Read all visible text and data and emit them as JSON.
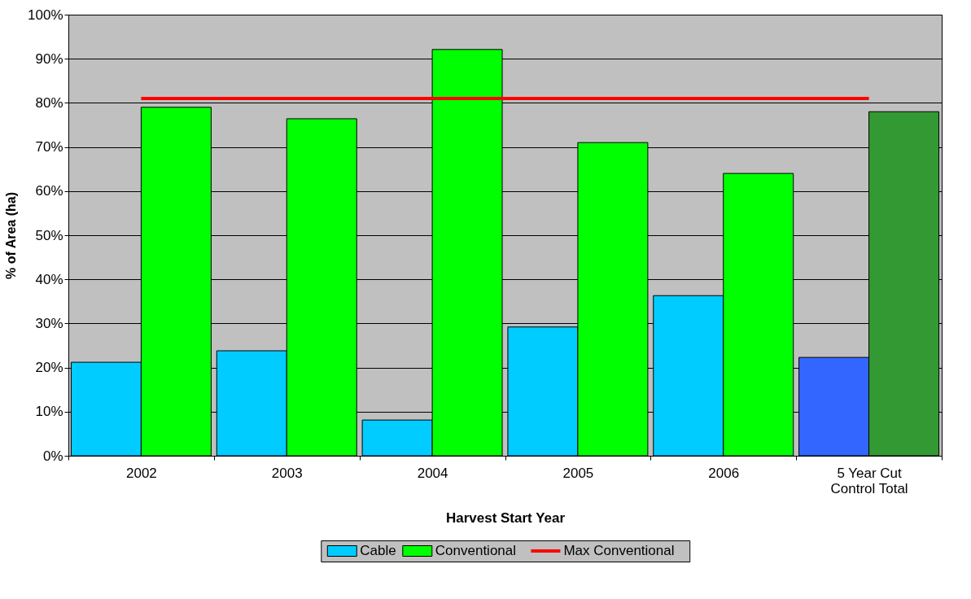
{
  "chart_data": {
    "type": "bar",
    "xlabel": "Harvest Start Year",
    "ylabel": "% of Area (ha)",
    "categories": [
      "2002",
      "2003",
      "2004",
      "2005",
      "2006",
      "5 Year Cut Control Total"
    ],
    "series": [
      {
        "name": "Cable",
        "color": "#00ccff",
        "colors": [
          "#00ccff",
          "#00ccff",
          "#00ccff",
          "#00ccff",
          "#00ccff",
          "#3366ff"
        ],
        "values": [
          21.2,
          23.8,
          8.1,
          29.2,
          36.3,
          22.3
        ]
      },
      {
        "name": "Conventional",
        "color": "#00ff00",
        "colors": [
          "#00ff00",
          "#00ff00",
          "#00ff00",
          "#00ff00",
          "#00ff00",
          "#339933"
        ],
        "values": [
          79.0,
          76.4,
          92.1,
          71.0,
          64.0,
          78.0
        ]
      },
      {
        "name": "Max Conventional",
        "type": "line",
        "color": "#ff0000",
        "values": [
          81,
          81,
          81,
          81,
          81,
          81
        ]
      }
    ],
    "ylim": [
      0,
      100
    ],
    "yticks": [
      {
        "value": 0,
        "label": "0%"
      },
      {
        "value": 10,
        "label": "10%"
      },
      {
        "value": 20,
        "label": "20%"
      },
      {
        "value": 30,
        "label": "30%"
      },
      {
        "value": 40,
        "label": "40%"
      },
      {
        "value": 50,
        "label": "50%"
      },
      {
        "value": 60,
        "label": "60%"
      },
      {
        "value": 70,
        "label": "70%"
      },
      {
        "value": 80,
        "label": "80%"
      },
      {
        "value": 90,
        "label": "90%"
      },
      {
        "value": 100,
        "label": "100%"
      }
    ],
    "grid": "y",
    "legend": "bottom"
  }
}
